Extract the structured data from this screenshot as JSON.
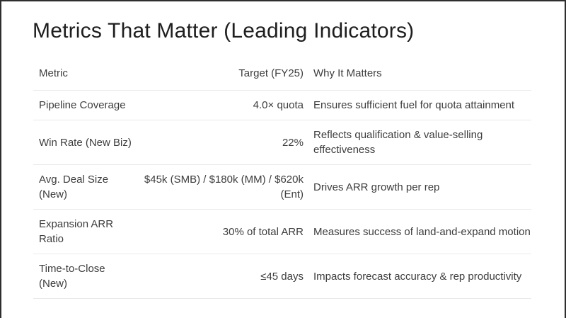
{
  "slide": {
    "title": "Metrics That Matter (Leading Indicators)"
  },
  "table": {
    "headers": {
      "metric": "Metric",
      "target": "Target (FY25)",
      "why": "Why It Matters"
    },
    "rows": [
      {
        "metric": "Pipeline Coverage",
        "target": "4.0× quota",
        "why": "Ensures sufficient fuel for quota attainment"
      },
      {
        "metric": "Win Rate (New Biz)",
        "target": "22%",
        "why": "Reflects qualification & value-selling effectiveness"
      },
      {
        "metric": "Avg. Deal Size (New)",
        "target": "$45k (SMB) / $180k (MM) / $620k (Ent)",
        "why": "Drives ARR growth per rep"
      },
      {
        "metric": "Expansion ARR Ratio",
        "target": "30% of total ARR",
        "why": "Measures success of land-and-expand motion"
      },
      {
        "metric": "Time-to-Close (New)",
        "target": "≤45 days",
        "why": "Impacts forecast accuracy & rep productivity"
      }
    ]
  },
  "colors": {
    "background": "#ffffff",
    "title_text": "#1e1e1e",
    "body_text": "#3d3d3d",
    "divider": "#e9e9e9",
    "frame_border": "#2e2e2e"
  }
}
